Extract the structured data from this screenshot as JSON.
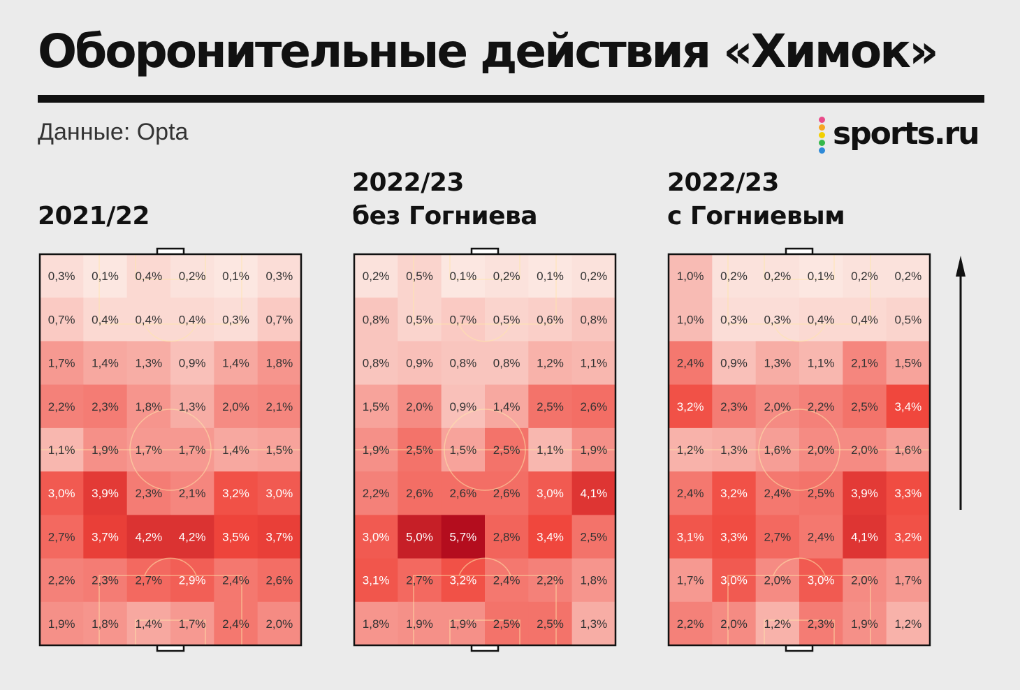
{
  "title": "Оборонительные действия «Химок»",
  "source": "Данные: Opta",
  "logo": {
    "text": "sports.ru",
    "dot_colors": [
      "#e94b8a",
      "#f6a623",
      "#f2d000",
      "#35b84a",
      "#2f8ad8",
      "#9b59b6"
    ]
  },
  "colors": {
    "background": "#ebebeb",
    "low": "#fcece6",
    "high": "#b40d1e",
    "text_dark": "#333333",
    "text_light": "#ffffff"
  },
  "chart_data": [
    {
      "type": "heatmap",
      "title_lines": [
        "2021/22"
      ],
      "rows": 9,
      "cols": 6,
      "values": [
        [
          "0,3%",
          "0,1%",
          "0,4%",
          "0,2%",
          "0,1%",
          "0,3%"
        ],
        [
          "0,7%",
          "0,4%",
          "0,4%",
          "0,4%",
          "0,3%",
          "0,7%"
        ],
        [
          "1,7%",
          "1,4%",
          "1,3%",
          "0,9%",
          "1,4%",
          "1,8%"
        ],
        [
          "2,2%",
          "2,3%",
          "1,8%",
          "1,3%",
          "2,0%",
          "2,1%"
        ],
        [
          "1,1%",
          "1,9%",
          "1,7%",
          "1,7%",
          "1,4%",
          "1,5%"
        ],
        [
          "3,0%",
          "3,9%",
          "2,3%",
          "2,1%",
          "3,2%",
          "3,0%"
        ],
        [
          "2,7%",
          "3,7%",
          "4,2%",
          "4,2%",
          "3,5%",
          "3,7%"
        ],
        [
          "2,2%",
          "2,3%",
          "2,7%",
          "2,9%",
          "2,4%",
          "2,6%"
        ],
        [
          "1,9%",
          "1,8%",
          "1,4%",
          "1,7%",
          "2,4%",
          "2,0%"
        ]
      ]
    },
    {
      "type": "heatmap",
      "title_lines": [
        "2022/23",
        "без Гогниева"
      ],
      "rows": 9,
      "cols": 6,
      "values": [
        [
          "0,2%",
          "0,5%",
          "0,1%",
          "0,2%",
          "0,1%",
          "0,2%"
        ],
        [
          "0,8%",
          "0,5%",
          "0,7%",
          "0,5%",
          "0,6%",
          "0,8%"
        ],
        [
          "0,8%",
          "0,9%",
          "0,8%",
          "0,8%",
          "1,2%",
          "1,1%"
        ],
        [
          "1,5%",
          "2,0%",
          "0,9%",
          "1,4%",
          "2,5%",
          "2,6%"
        ],
        [
          "1,9%",
          "2,5%",
          "1,5%",
          "2,5%",
          "1,1%",
          "1,9%"
        ],
        [
          "2,2%",
          "2,6%",
          "2,6%",
          "2,6%",
          "3,0%",
          "4,1%"
        ],
        [
          "3,0%",
          "5,0%",
          "5,7%",
          "2,8%",
          "3,4%",
          "2,5%"
        ],
        [
          "3,1%",
          "2,7%",
          "3,2%",
          "2,4%",
          "2,2%",
          "1,8%"
        ],
        [
          "1,8%",
          "1,9%",
          "1,9%",
          "2,5%",
          "2,5%",
          "1,3%"
        ]
      ]
    },
    {
      "type": "heatmap",
      "title_lines": [
        "2022/23",
        "с Гогниевым"
      ],
      "rows": 9,
      "cols": 6,
      "values": [
        [
          "1,0%",
          "0,2%",
          "0,2%",
          "0,1%",
          "0,2%",
          "0,2%"
        ],
        [
          "1,0%",
          "0,3%",
          "0,3%",
          "0,4%",
          "0,4%",
          "0,5%"
        ],
        [
          "2,4%",
          "0,9%",
          "1,3%",
          "1,1%",
          "2,1%",
          "1,5%"
        ],
        [
          "3,2%",
          "2,3%",
          "2,0%",
          "2,2%",
          "2,5%",
          "3,4%"
        ],
        [
          "1,2%",
          "1,3%",
          "1,6%",
          "2,0%",
          "2,0%",
          "1,6%"
        ],
        [
          "2,4%",
          "3,2%",
          "2,4%",
          "2,5%",
          "3,9%",
          "3,3%"
        ],
        [
          "3,1%",
          "3,3%",
          "2,7%",
          "2,4%",
          "4,1%",
          "3,2%"
        ],
        [
          "1,7%",
          "3,0%",
          "2,0%",
          "3,0%",
          "2,0%",
          "1,7%"
        ],
        [
          "2,2%",
          "2,0%",
          "1,2%",
          "2,3%",
          "1,9%",
          "1,2%"
        ]
      ]
    }
  ]
}
